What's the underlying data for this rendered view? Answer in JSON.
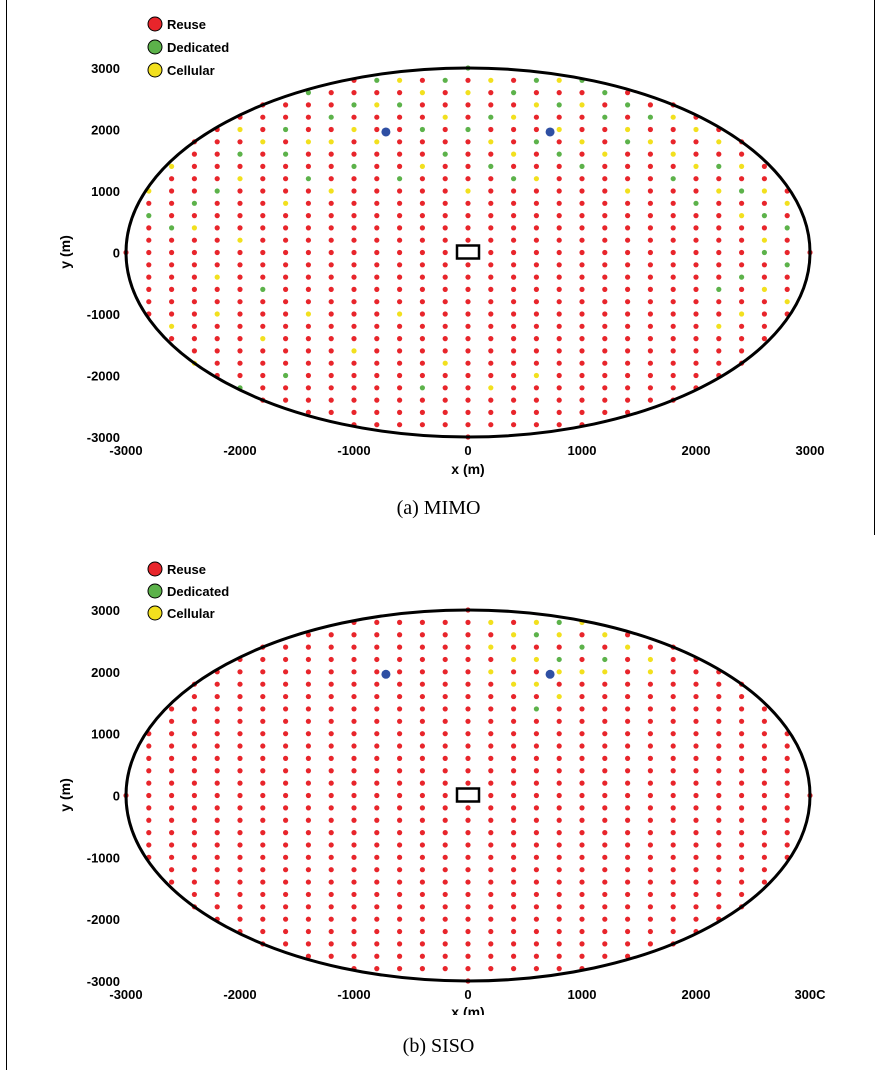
{
  "chart_data": [
    {
      "type": "scatter",
      "caption": "(a) MIMO",
      "xlabel": "x (m)",
      "ylabel": "y (m)",
      "xlim": [
        -3000,
        3000
      ],
      "ylim": [
        -3000,
        3000
      ],
      "x_ticks": [
        "-3000",
        "-2000",
        "-1000",
        "0",
        "1000",
        "2000",
        "3000"
      ],
      "y_ticks": [
        "3000",
        "2000",
        "1000",
        "0",
        "-1000",
        "-2000",
        "-3000"
      ],
      "legend": [
        {
          "label": "Reuse",
          "color": "#e8252b"
        },
        {
          "label": "Dedicated",
          "color": "#5cb24a"
        },
        {
          "label": "Cellular",
          "color": "#f2e01e"
        }
      ],
      "legend_position": "top-left",
      "grid": false,
      "cell_radius": 3000,
      "grid_spacing_x": 200,
      "grid_spacing_y": 200,
      "default_class": "Reuse",
      "green_points": [
        [
          -2800,
          600
        ],
        [
          -2600,
          400
        ],
        [
          -2400,
          800
        ],
        [
          -2200,
          1000
        ],
        [
          -2000,
          -2200
        ],
        [
          -2000,
          1600
        ],
        [
          -1800,
          -600
        ],
        [
          -1600,
          -2000
        ],
        [
          -1600,
          1600
        ],
        [
          -1600,
          2000
        ],
        [
          -1400,
          1200
        ],
        [
          -1400,
          2600
        ],
        [
          -1200,
          2200
        ],
        [
          -1200,
          2800
        ],
        [
          -1000,
          1400
        ],
        [
          -1000,
          2400
        ],
        [
          -800,
          2800
        ],
        [
          -600,
          1200
        ],
        [
          -600,
          2400
        ],
        [
          -400,
          2000
        ],
        [
          -400,
          -2200
        ],
        [
          -200,
          1600
        ],
        [
          -200,
          2800
        ],
        [
          0,
          3000
        ],
        [
          0,
          2000
        ],
        [
          200,
          2200
        ],
        [
          200,
          1400
        ],
        [
          400,
          2600
        ],
        [
          400,
          1200
        ],
        [
          600,
          2800
        ],
        [
          600,
          1800
        ],
        [
          800,
          2400
        ],
        [
          800,
          1600
        ],
        [
          1000,
          2800
        ],
        [
          1000,
          1400
        ],
        [
          1200,
          2600
        ],
        [
          1200,
          2200
        ],
        [
          1400,
          1800
        ],
        [
          1400,
          2400
        ],
        [
          1600,
          2200
        ],
        [
          1800,
          1200
        ],
        [
          2000,
          800
        ],
        [
          2200,
          1400
        ],
        [
          2400,
          1000
        ],
        [
          2600,
          600
        ],
        [
          2800,
          400
        ],
        [
          2800,
          -200
        ],
        [
          2600,
          0
        ],
        [
          2400,
          -400
        ],
        [
          2200,
          -600
        ]
      ],
      "yellow_points": [
        [
          -2800,
          1000
        ],
        [
          -2600,
          1400
        ],
        [
          -2600,
          -1200
        ],
        [
          -2400,
          400
        ],
        [
          -2400,
          -1800
        ],
        [
          -2200,
          -1000
        ],
        [
          -2200,
          -400
        ],
        [
          -2000,
          200
        ],
        [
          -2000,
          1200
        ],
        [
          -2000,
          2000
        ],
        [
          -1800,
          1800
        ],
        [
          -1800,
          -1400
        ],
        [
          -1600,
          800
        ],
        [
          -1400,
          1800
        ],
        [
          -1400,
          -1000
        ],
        [
          -1200,
          1000
        ],
        [
          -1200,
          1800
        ],
        [
          -1000,
          2000
        ],
        [
          -1000,
          -1600
        ],
        [
          -800,
          1800
        ],
        [
          -800,
          2400
        ],
        [
          -600,
          2800
        ],
        [
          -600,
          -1000
        ],
        [
          -400,
          2600
        ],
        [
          -400,
          1400
        ],
        [
          -200,
          2200
        ],
        [
          -200,
          -1800
        ],
        [
          0,
          2600
        ],
        [
          0,
          1000
        ],
        [
          200,
          2800
        ],
        [
          200,
          1800
        ],
        [
          200,
          -2200
        ],
        [
          400,
          2200
        ],
        [
          400,
          1600
        ],
        [
          600,
          2400
        ],
        [
          600,
          1200
        ],
        [
          600,
          -2000
        ],
        [
          800,
          2800
        ],
        [
          800,
          2000
        ],
        [
          1000,
          2400
        ],
        [
          1000,
          1800
        ],
        [
          1200,
          2800
        ],
        [
          1200,
          1600
        ],
        [
          1400,
          2000
        ],
        [
          1400,
          1000
        ],
        [
          1600,
          2600
        ],
        [
          1600,
          1800
        ],
        [
          1800,
          2200
        ],
        [
          1800,
          1600
        ],
        [
          2000,
          2000
        ],
        [
          2000,
          1400
        ],
        [
          2200,
          1800
        ],
        [
          2200,
          1000
        ],
        [
          2400,
          1400
        ],
        [
          2400,
          600
        ],
        [
          2600,
          1000
        ],
        [
          2600,
          200
        ],
        [
          2800,
          800
        ],
        [
          2800,
          -800
        ],
        [
          2600,
          -600
        ],
        [
          2400,
          -1000
        ],
        [
          2200,
          -1200
        ]
      ],
      "transmitters": [
        [
          -720,
          1960
        ],
        [
          720,
          1960
        ]
      ],
      "base_station": [
        0,
        0
      ]
    },
    {
      "type": "scatter",
      "caption": "(b) SISO",
      "xlabel": "x (m)",
      "ylabel": "y (m)",
      "xlim": [
        -3000,
        3000
      ],
      "ylim": [
        -3000,
        3000
      ],
      "x_ticks": [
        "-3000",
        "-2000",
        "-1000",
        "0",
        "1000",
        "2000",
        "300C"
      ],
      "y_ticks": [
        "3000",
        "2000",
        "1000",
        "0",
        "-1000",
        "-2000",
        "-3000"
      ],
      "legend": [
        {
          "label": "Reuse",
          "color": "#e8252b"
        },
        {
          "label": "Dedicated",
          "color": "#5cb24a"
        },
        {
          "label": "Cellular",
          "color": "#f2e01e"
        }
      ],
      "legend_position": "top-left",
      "grid": false,
      "cell_radius": 3000,
      "grid_spacing_x": 200,
      "grid_spacing_y": 200,
      "default_class": "Reuse",
      "green_points": [
        [
          600,
          2600
        ],
        [
          800,
          2800
        ],
        [
          1000,
          2400
        ],
        [
          1200,
          2200
        ],
        [
          600,
          1400
        ],
        [
          800,
          2200
        ]
      ],
      "yellow_points": [
        [
          200,
          2800
        ],
        [
          200,
          2400
        ],
        [
          200,
          2000
        ],
        [
          400,
          2600
        ],
        [
          400,
          2200
        ],
        [
          400,
          1800
        ],
        [
          600,
          2800
        ],
        [
          600,
          2200
        ],
        [
          600,
          1800
        ],
        [
          800,
          2600
        ],
        [
          800,
          2000
        ],
        [
          800,
          1600
        ],
        [
          1000,
          2800
        ],
        [
          1000,
          2000
        ],
        [
          1200,
          2600
        ],
        [
          1200,
          2000
        ],
        [
          1400,
          2400
        ],
        [
          1600,
          2200
        ],
        [
          1600,
          2000
        ]
      ],
      "transmitters": [
        [
          -720,
          1960
        ],
        [
          720,
          1960
        ]
      ],
      "base_station": [
        0,
        0
      ]
    }
  ]
}
